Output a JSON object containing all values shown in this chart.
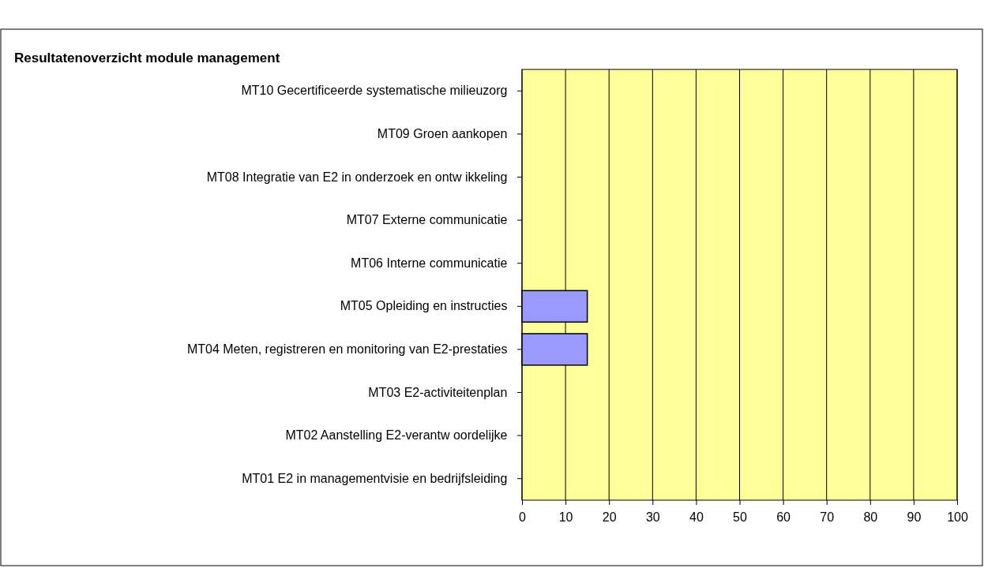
{
  "chart_data": {
    "type": "bar",
    "orientation": "horizontal",
    "title": "Resultatenoverzicht module management",
    "categories": [
      "MT10 Gecertificeerde systematische milieuzorg",
      "MT09 Groen aankopen",
      "MT08 Integratie van E2 in onderzoek en ontw ikkeling",
      "MT07 Externe communicatie",
      "MT06 Interne communicatie",
      "MT05 Opleiding en instructies",
      "MT04 Meten, registreren en monitoring van E2-prestaties",
      "MT03 E2-activiteitenplan",
      "MT02 Aanstelling E2-verantw oordelijke",
      "MT01 E2 in managementvisie en bedrijfsleiding"
    ],
    "values": [
      0,
      0,
      0,
      0,
      0,
      15,
      15,
      0,
      0,
      0
    ],
    "color": "#9999ff",
    "xlim": [
      0,
      100
    ],
    "xticks": [
      0,
      10,
      20,
      30,
      40,
      50,
      60,
      70,
      80,
      90,
      100
    ],
    "grid": "x"
  }
}
